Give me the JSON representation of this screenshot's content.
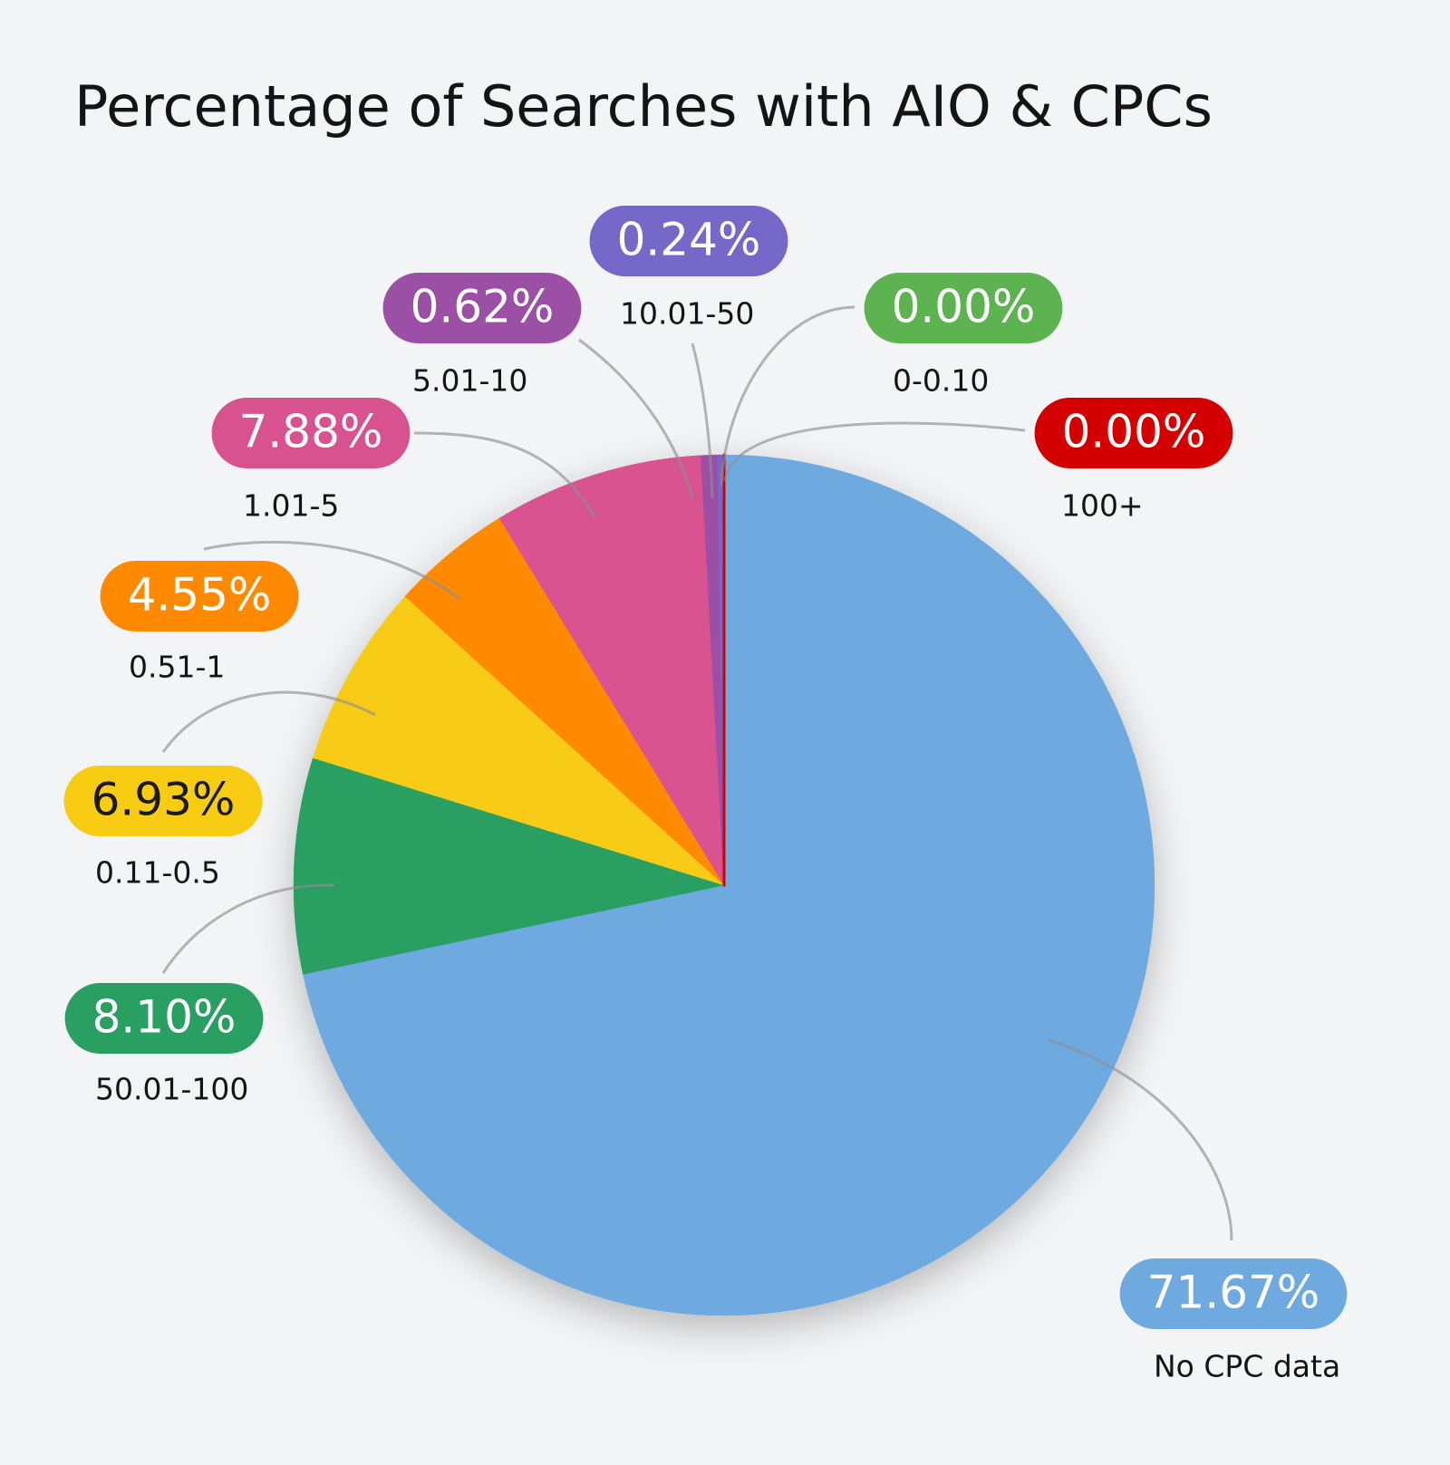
{
  "chart_data": {
    "type": "pie",
    "title": "Percentage of Searches with AIO & CPCs",
    "categories": [
      "No CPC data",
      "50.01-100",
      "0.11-0.5",
      "0.51-1",
      "1.01-5",
      "5.01-10",
      "10.01-50",
      "0-0.10",
      "100+"
    ],
    "values": [
      71.67,
      8.1,
      6.93,
      4.55,
      7.88,
      0.62,
      0.24,
      0.0,
      0.0
    ],
    "value_labels": [
      "71.67%",
      "8.10%",
      "6.93%",
      "4.55%",
      "7.88%",
      "0.62%",
      "0.24%",
      "0.00%",
      "0.00%"
    ],
    "colors": [
      "#6eaae0",
      "#2a9f62",
      "#f8cc12",
      "#ff8a00",
      "#d8528f",
      "#9b4fa5",
      "#7668c8",
      "#5cb350",
      "#d40000"
    ],
    "value_label_colors": [
      "#ffffff",
      "#ffffff",
      "#1a1a1a",
      "#ffffff",
      "#ffffff",
      "#ffffff",
      "#ffffff",
      "#ffffff",
      "#ffffff"
    ]
  }
}
